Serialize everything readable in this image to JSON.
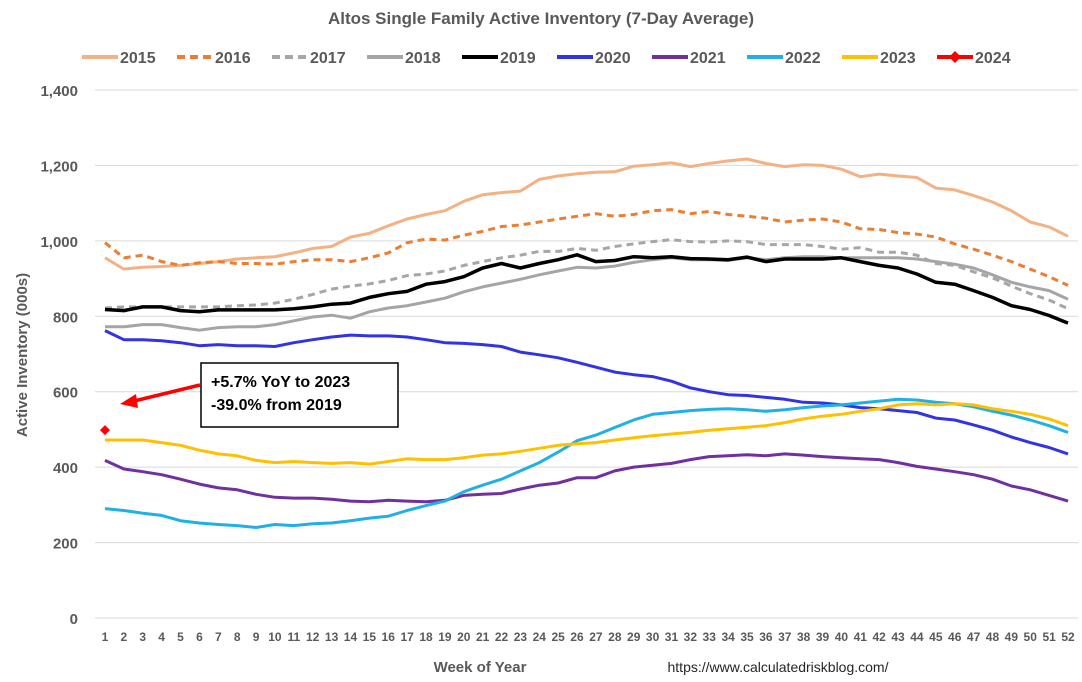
{
  "chart_data": {
    "type": "line",
    "title": "Altos Single Family Active Inventory (7-Day Average)",
    "xlabel": "Week of Year",
    "ylabel": "Active Inventory (000s)",
    "source": "https://www.calculatedriskblog.com/",
    "ylim": [
      0,
      1400
    ],
    "yticks": [
      0,
      200,
      400,
      600,
      800,
      1000,
      1200,
      1400
    ],
    "ytick_labels": [
      "0",
      "200",
      "400",
      "600",
      "800",
      "1,000",
      "1,200",
      "1,400"
    ],
    "xlim": [
      1,
      52
    ],
    "grid": true,
    "legend_position": "top",
    "annotation": {
      "lines": [
        "+5.7% YoY to 2023",
        "-39.0% from 2019"
      ],
      "color": "#FF0000"
    },
    "series": [
      {
        "name": "2015",
        "color": "#F4B183",
        "dash": false,
        "values": [
          955,
          925,
          930,
          932,
          935,
          940,
          945,
          952,
          955,
          958,
          968,
          980,
          985,
          1010,
          1020,
          1040,
          1058,
          1070,
          1080,
          1105,
          1122,
          1128,
          1132,
          1163,
          1172,
          1178,
          1182,
          1183,
          1198,
          1202,
          1207,
          1197,
          1205,
          1212,
          1217,
          1205,
          1197,
          1202,
          1200,
          1190,
          1170,
          1177,
          1172,
          1168,
          1140,
          1135,
          1120,
          1103,
          1080,
          1050,
          1037,
          1012
        ]
      },
      {
        "name": "2016",
        "color": "#ED7D31",
        "dash": true,
        "values": [
          995,
          955,
          962,
          945,
          935,
          942,
          945,
          940,
          940,
          938,
          945,
          950,
          950,
          945,
          955,
          968,
          995,
          1005,
          1002,
          1015,
          1025,
          1038,
          1042,
          1050,
          1058,
          1065,
          1072,
          1065,
          1070,
          1080,
          1083,
          1072,
          1078,
          1070,
          1065,
          1060,
          1050,
          1055,
          1058,
          1050,
          1032,
          1030,
          1022,
          1018,
          1010,
          992,
          978,
          962,
          945,
          925,
          905,
          882
        ]
      },
      {
        "name": "2017",
        "color": "#A6A6A6",
        "dash": true,
        "values": [
          822,
          825,
          825,
          825,
          825,
          825,
          825,
          828,
          830,
          835,
          845,
          858,
          872,
          880,
          886,
          895,
          908,
          912,
          920,
          935,
          945,
          955,
          962,
          972,
          972,
          980,
          975,
          985,
          992,
          998,
          1003,
          998,
          997,
          1000,
          998,
          990,
          990,
          990,
          985,
          978,
          982,
          970,
          970,
          962,
          940,
          935,
          918,
          902,
          880,
          860,
          843,
          820
        ]
      },
      {
        "name": "2018",
        "color": "#A5A5A5",
        "dash": false,
        "values": [
          772,
          772,
          778,
          778,
          770,
          763,
          770,
          772,
          772,
          778,
          788,
          798,
          803,
          795,
          812,
          822,
          828,
          838,
          848,
          865,
          878,
          888,
          898,
          910,
          920,
          930,
          928,
          933,
          943,
          950,
          955,
          950,
          950,
          948,
          955,
          950,
          955,
          958,
          958,
          955,
          955,
          955,
          955,
          952,
          945,
          938,
          928,
          910,
          890,
          878,
          868,
          845
        ]
      },
      {
        "name": "2019",
        "color": "#000000",
        "dash": false,
        "values": [
          818,
          815,
          825,
          825,
          815,
          812,
          817,
          817,
          817,
          817,
          820,
          825,
          832,
          835,
          850,
          860,
          866,
          885,
          892,
          905,
          928,
          940,
          928,
          940,
          950,
          963,
          945,
          948,
          958,
          955,
          958,
          953,
          952,
          950,
          957,
          945,
          952,
          952,
          952,
          955,
          945,
          935,
          928,
          912,
          890,
          885,
          868,
          850,
          828,
          818,
          802,
          782
        ]
      },
      {
        "name": "2020",
        "color": "#3333E6",
        "dash": false,
        "values": [
          762,
          738,
          738,
          735,
          730,
          722,
          725,
          722,
          722,
          720,
          730,
          738,
          745,
          750,
          748,
          748,
          745,
          738,
          730,
          728,
          725,
          720,
          705,
          698,
          690,
          678,
          665,
          652,
          645,
          640,
          628,
          610,
          600,
          592,
          590,
          585,
          580,
          572,
          570,
          565,
          558,
          555,
          550,
          545,
          530,
          525,
          512,
          498,
          480,
          465,
          452,
          435
        ]
      },
      {
        "name": "2021",
        "color": "#7030A0",
        "dash": false,
        "values": [
          418,
          395,
          388,
          380,
          368,
          355,
          345,
          340,
          328,
          320,
          318,
          318,
          315,
          310,
          308,
          312,
          310,
          308,
          312,
          325,
          328,
          330,
          342,
          352,
          358,
          372,
          372,
          390,
          400,
          405,
          410,
          420,
          428,
          430,
          433,
          430,
          435,
          432,
          428,
          425,
          422,
          420,
          412,
          402,
          395,
          388,
          380,
          368,
          350,
          340,
          325,
          310
        ]
      },
      {
        "name": "2022",
        "color": "#1FB0E6",
        "dash": false,
        "values": [
          290,
          285,
          278,
          272,
          258,
          252,
          248,
          245,
          240,
          248,
          245,
          250,
          252,
          258,
          265,
          270,
          285,
          298,
          310,
          335,
          352,
          368,
          390,
          412,
          440,
          470,
          485,
          505,
          525,
          540,
          545,
          550,
          553,
          555,
          552,
          548,
          552,
          558,
          562,
          565,
          570,
          575,
          580,
          578,
          572,
          568,
          560,
          548,
          538,
          525,
          510,
          492
        ]
      },
      {
        "name": "2023",
        "color": "#FFC000",
        "dash": false,
        "values": [
          472,
          472,
          472,
          465,
          458,
          445,
          435,
          430,
          418,
          412,
          415,
          412,
          410,
          412,
          408,
          415,
          422,
          420,
          420,
          425,
          432,
          435,
          442,
          450,
          458,
          462,
          465,
          472,
          478,
          483,
          488,
          492,
          498,
          502,
          506,
          510,
          518,
          528,
          535,
          540,
          548,
          555,
          565,
          568,
          565,
          568,
          565,
          555,
          548,
          540,
          528,
          510
        ]
      },
      {
        "name": "2024",
        "color": "#FF0000",
        "dash": false,
        "marker": "diamond",
        "values": [
          498
        ]
      }
    ]
  }
}
